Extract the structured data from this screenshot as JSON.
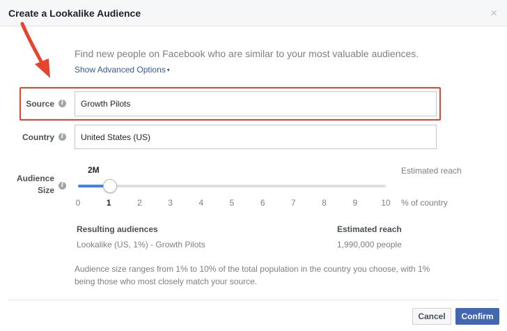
{
  "dialog": {
    "title": "Create a Lookalike Audience",
    "close_glyph": "×"
  },
  "intro": {
    "text": "Find new people on Facebook who are similar to your most valuable audiences.",
    "advanced_label": "Show Advanced Options",
    "advanced_caret": "▾"
  },
  "source": {
    "label": "Source",
    "value": "Growth Pilots"
  },
  "country": {
    "label": "Country",
    "value": "United States (US)"
  },
  "audience_size": {
    "label_line1": "Audience",
    "label_line2": "Size",
    "reach_value": "2M",
    "estimated_reach_label": "Estimated reach",
    "pct_label": "% of country",
    "ticks": [
      "0",
      "1",
      "2",
      "3",
      "4",
      "5",
      "6",
      "7",
      "8",
      "9",
      "10"
    ],
    "selected_percent": 1,
    "max_percent": 10
  },
  "results": {
    "resulting_header": "Resulting audiences",
    "reach_header": "Estimated reach",
    "audience_name": "Lookalike (US, 1%) - Growth Pilots",
    "audience_reach": "1,990,000 people"
  },
  "note": "Audience size ranges from 1% to 10% of the total population in the country you choose, with 1% being those who most closely match your source.",
  "buttons": {
    "cancel": "Cancel",
    "confirm": "Confirm"
  },
  "colors": {
    "accent": "#4267b2",
    "link": "#365899",
    "highlight": "#e8432c",
    "slider_fill": "#4080ff"
  },
  "icons": {
    "info": "info-icon",
    "close": "close-icon",
    "annotation_arrow": "annotation-arrow"
  }
}
